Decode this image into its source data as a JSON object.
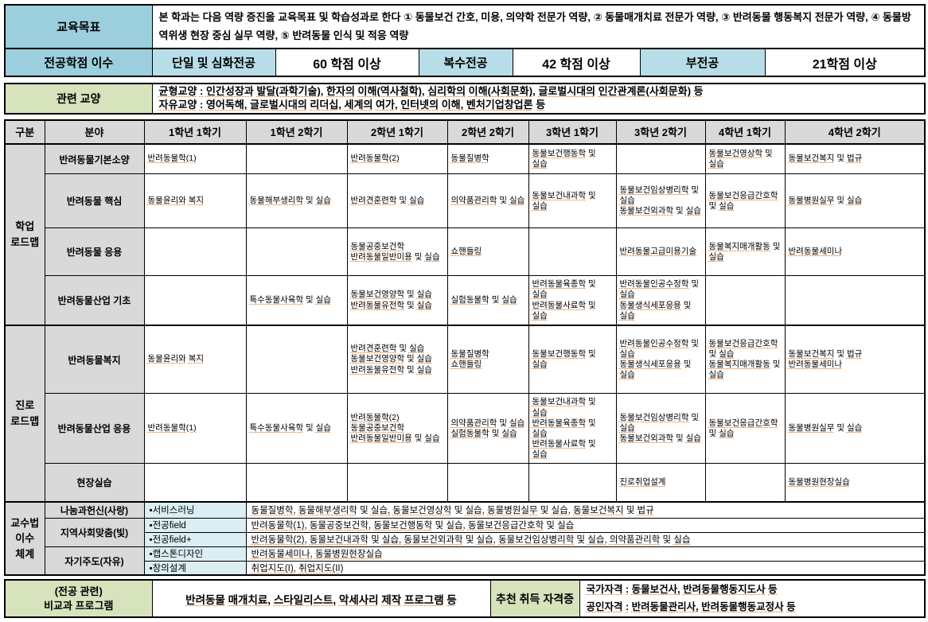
{
  "colors": {
    "teal": "#9ccfdd",
    "lightblue": "#b7dee8",
    "cyan": "#daeef3",
    "green": "#d6e3bc",
    "gray": "#d9d9d9",
    "underline": "#e26b0a"
  },
  "top": {
    "goal_label": "교육목표",
    "goal_text": "본 학과는 다음 역량 증진을 교육목표 및 학습성과로 한다 ① 동물보건 간호, 미용, 의약학 전문가 역량, ② 동물매개치료 전문가 역량, ③ 반려동물 행동복지 전문가 역량, ④ 동물방역위생 현장 중심 실무 역량, ⑤ 반려동물 인식 및 적응 역량",
    "credits_label": "전공학점 이수",
    "credits": [
      {
        "name": "단일 및 심화전공",
        "value": "60 학점 이상"
      },
      {
        "name": "복수전공",
        "value": "42 학점 이상"
      },
      {
        "name": "부전공",
        "value": "21학점 이상"
      }
    ]
  },
  "liberal": {
    "label": "관련 교양",
    "lines": [
      "균형교양 : 인간성장과 발달(과학기술), 한자의 이해(역사철학), 심리학의 이해(사회문화), 글로벌시대의 인간관계론(사회문화) 등",
      "자유교양 : 영어독해, 글로벌시대의 리더십, 세계의 여가, 인터넷의 이해, 벤처기업창업론 등"
    ]
  },
  "roadmap": {
    "headers": [
      "구분",
      "분야",
      "1학년 1학기",
      "1학년 2학기",
      "2학년 1학기",
      "2학년 2학기",
      "3학년 1학기",
      "3학년 2학기",
      "4학년 1학기",
      "4학년 2학기"
    ]
  },
  "study": {
    "group": "학업\n로드맵",
    "rows": [
      {
        "field": "반려동물기본소양",
        "cells": [
          [
            "반려동물학(1)"
          ],
          [],
          [
            "반려동물학(2)"
          ],
          [
            "동물질병학"
          ],
          [
            "동물보건행동학 및 실습"
          ],
          [],
          [
            "동물보건영상학 및 실습"
          ],
          [
            "동물보건복지 및 법규"
          ]
        ]
      },
      {
        "field": "반려동물 핵심",
        "cells": [
          [
            "동물윤리와 복지"
          ],
          [
            "동물해부생리학 및 실습"
          ],
          [
            "반려견훈련학 및 실습"
          ],
          [
            "의약품관리학 및 실습"
          ],
          [
            "동물보건내과학 및 실습"
          ],
          [
            "동물보건임상병리학 및 실습",
            "동물보건외과학 및 실습"
          ],
          [
            "동물보건응급간호학 및 실습"
          ],
          [
            "동물병원실무 및 실습"
          ]
        ]
      },
      {
        "field": "반려동물 응용",
        "cells": [
          [],
          [],
          [
            "동물공중보건학",
            "반려동물일반미용 및 실습"
          ],
          [
            "쇼핸들링"
          ],
          [],
          [
            "반려동물고급미용기술"
          ],
          [
            "동물복지매개활동 및 실습"
          ],
          [
            "반려동물세미나"
          ]
        ]
      },
      {
        "field": "반려동물산업 기초",
        "cells": [
          [],
          [
            "특수동물사육학 및 실습"
          ],
          [
            "동물보건영양학 및 실습",
            "반려동물유전학 및 실습"
          ],
          [
            "실험동물학 및 실습"
          ],
          [
            "반려동물육종학 및 실습",
            "반려동물사료학 및 실습"
          ],
          [
            "반려동물인공수정학 및 실습",
            "동물생식세포응용 및 실습"
          ],
          [],
          []
        ]
      }
    ]
  },
  "career": {
    "group": "진로\n로드맵",
    "rows": [
      {
        "field": "반려동물복지",
        "cells": [
          [
            "동물윤리와 복지"
          ],
          [],
          [
            "반려견훈련학 및 실습",
            "동물보건영양학 및 실습",
            "반려동물유전학 및 실습"
          ],
          [
            "동물질병학",
            "쇼핸들링"
          ],
          [
            "동물보건행동학 및 실습"
          ],
          [
            "반려동물인공수정학 및 실습",
            "동물생식세포응용 및 실습"
          ],
          [
            "동물보건응급간호학 및 실습",
            "동물복지매개활동 및 실습"
          ],
          [
            "동물보건복지 및 법규",
            "반려동물세미나"
          ]
        ]
      },
      {
        "field": "반려동물산업 응용",
        "cells": [
          [
            "반려동물학(1)"
          ],
          [
            "특수동물사육학 및 실습"
          ],
          [
            "반려동물학(2)",
            "동물공중보건학",
            "반려동물일반미용 및 실습"
          ],
          [
            "의약품관리학 및 실습",
            "실험동물학 및 실습"
          ],
          [
            "동물보건내과학 및 실습",
            "반려동물육종학 및 실습",
            "반려동물사료학 및 실습"
          ],
          [
            "동물보건임상병리학 및 실습",
            "동물보건외과학 및 실습"
          ],
          [
            "동물보건응급간호학 및 실습"
          ],
          [
            "동물병원실무 및 실습"
          ]
        ]
      },
      {
        "field": "현장실습",
        "cells": [
          [],
          [],
          [],
          [],
          [],
          [
            "진로취업설계"
          ],
          [],
          [
            "동물병원현장실습"
          ]
        ]
      }
    ]
  },
  "teaching": {
    "group": "교수법\n이수\n체계",
    "rows": [
      {
        "field": "나눔과헌신(사랑)",
        "methods": [
          {
            "name": "▪서비스러닝",
            "courses": [
              "동물질병학, 동물해부생리학 및 실습, 동물보건영상학 및 실습, 동물병원실무 및 실습, 동물보건복지 및 법규"
            ]
          }
        ]
      },
      {
        "field": "지역사회맞춤(빛)",
        "methods": [
          {
            "name": "▪전공field",
            "courses": [
              "반려동물학(1), 동물공중보건학, 동물보건행동학 및 실습, 동물보건응급간호학 및 실습"
            ]
          },
          {
            "name": "▪전공field+",
            "courses": [
              "반려동물학(2), 동물보건내과학 및 실습, 동물보건외과학 및 실습, 동물보건임상병리학 및 실습, 의약품관리학 및 실습"
            ]
          }
        ]
      },
      {
        "field": "자기주도(자유)",
        "methods": [
          {
            "name": "▪캡스톤디자인",
            "courses": [
              "반려동물세미나, 동물병원현장실습"
            ]
          },
          {
            "name": "▪창의설계",
            "courses": [
              "취업지도(I), 취업지도(II)"
            ]
          }
        ]
      }
    ]
  },
  "bottom": {
    "extra_label": "(전공 관련)\n비교과 프로그램",
    "extra_text": [
      "반려동물 매개치료, 스타일리스트, 악세사리 제작 프로그램 등"
    ],
    "cert_label": "추천 취득 자격증",
    "cert_lines": [
      "국가자격 : 동물보건사, 반려동물행동지도사 등",
      "공인자격 : 반려동물관리사, 반려동물행동교정사 등"
    ]
  }
}
